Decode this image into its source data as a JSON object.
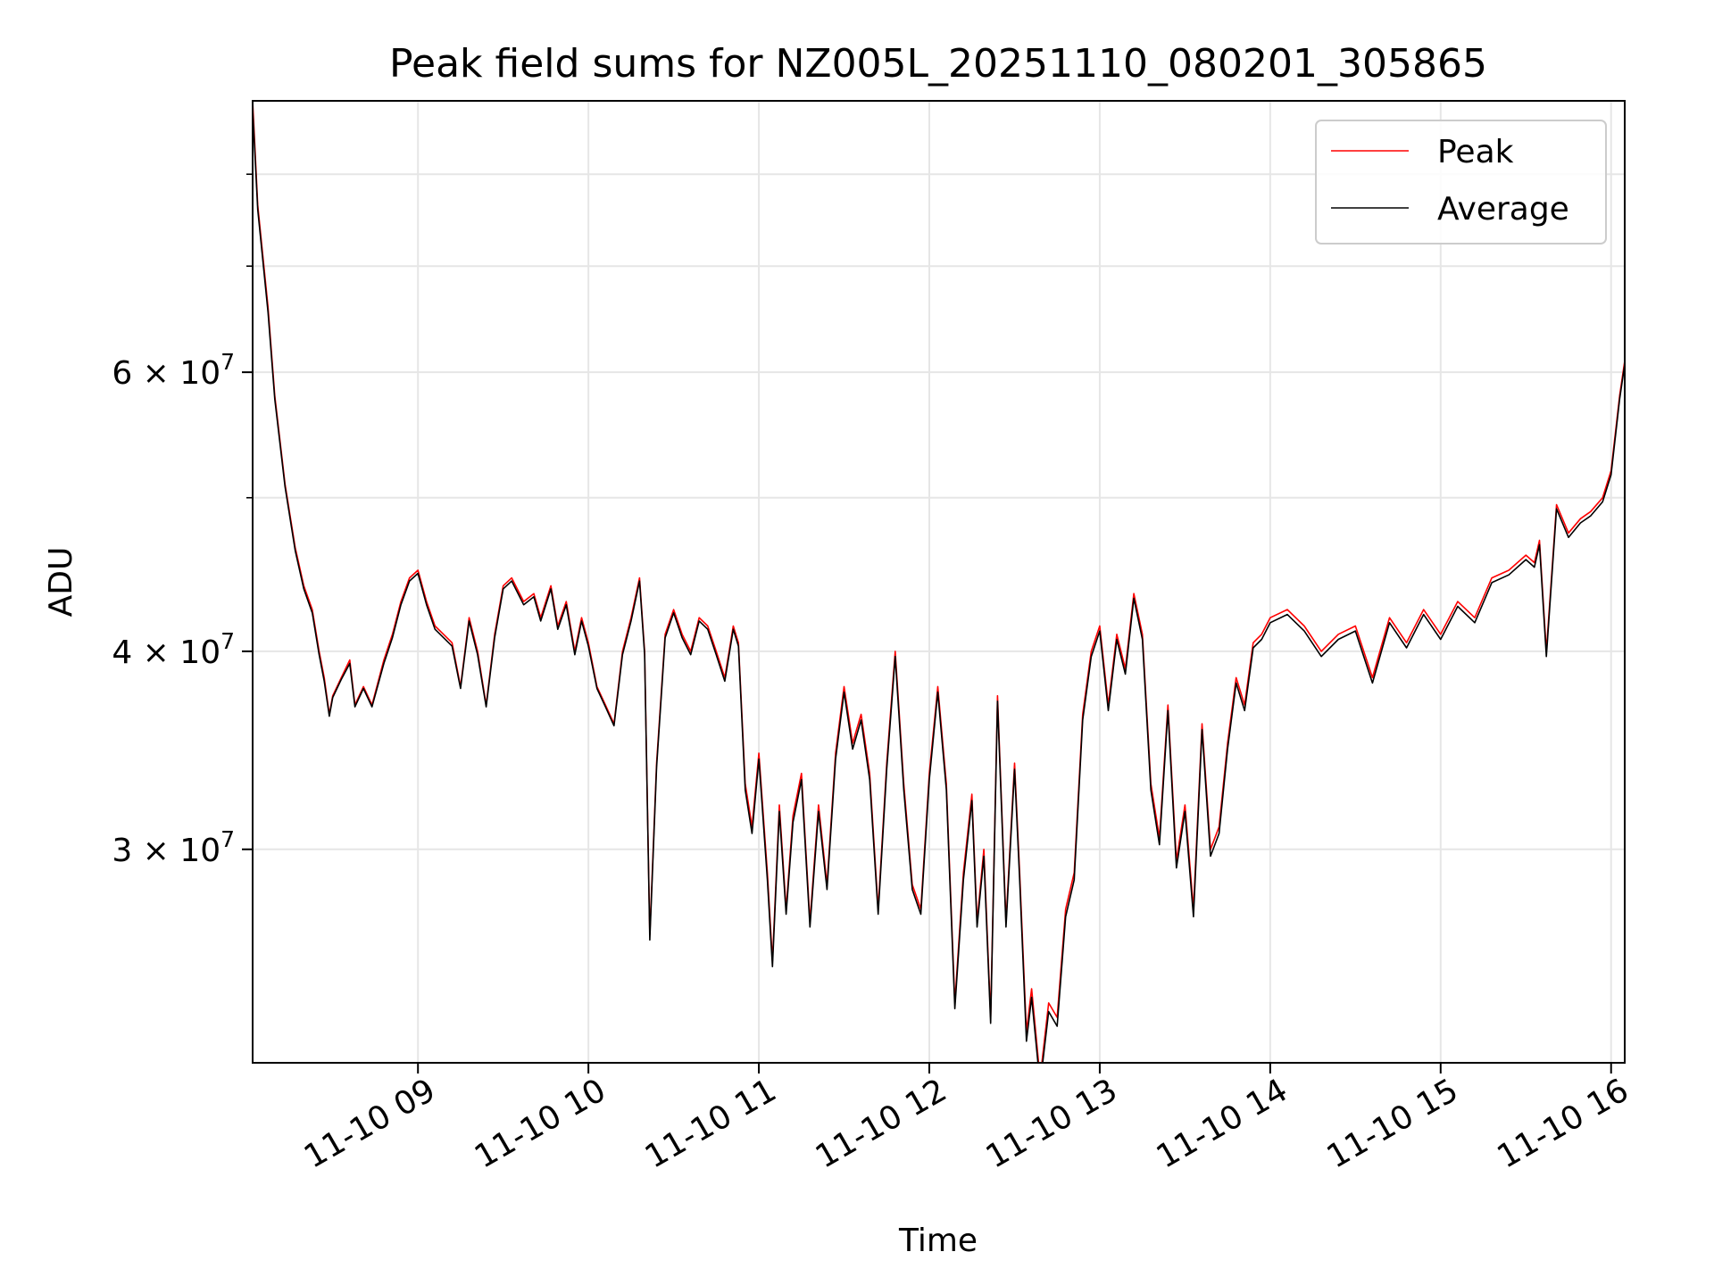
{
  "chart_data": {
    "type": "line",
    "title": "Peak field sums for NZ005L_20251110_080201_305865",
    "xlabel": "Time",
    "ylabel": "ADU",
    "y_scale": "log",
    "xlim_hours": [
      8.03,
      16.08
    ],
    "ylim": [
      22000000,
      89000000
    ],
    "grid": true,
    "legend_position": "upper right",
    "x_ticks": [
      {
        "hour": 9,
        "label": "11-10 09"
      },
      {
        "hour": 10,
        "label": "11-10 10"
      },
      {
        "hour": 11,
        "label": "11-10 11"
      },
      {
        "hour": 12,
        "label": "11-10 12"
      },
      {
        "hour": 13,
        "label": "11-10 13"
      },
      {
        "hour": 14,
        "label": "11-10 14"
      },
      {
        "hour": 15,
        "label": "11-10 15"
      },
      {
        "hour": 16,
        "label": "11-10 16"
      }
    ],
    "y_major_ticks": [
      {
        "value": 30000000,
        "mantissa": "3",
        "exponent": "7"
      },
      {
        "value": 40000000,
        "mantissa": "4",
        "exponent": "7"
      },
      {
        "value": 60000000,
        "mantissa": "6",
        "exponent": "7"
      }
    ],
    "y_minor_ticks": [
      50000000,
      70000000,
      80000000
    ],
    "times_hours": [
      8.03,
      8.06,
      8.09,
      8.12,
      8.16,
      8.22,
      8.28,
      8.33,
      8.38,
      8.42,
      8.45,
      8.48,
      8.5,
      8.55,
      8.6,
      8.63,
      8.68,
      8.73,
      8.8,
      8.85,
      8.9,
      8.95,
      9.0,
      9.05,
      9.1,
      9.15,
      9.2,
      9.25,
      9.3,
      9.35,
      9.4,
      9.45,
      9.5,
      9.55,
      9.62,
      9.68,
      9.72,
      9.78,
      9.82,
      9.87,
      9.92,
      9.96,
      10.0,
      10.05,
      10.1,
      10.15,
      10.2,
      10.25,
      10.3,
      10.33,
      10.36,
      10.4,
      10.45,
      10.5,
      10.55,
      10.6,
      10.65,
      10.7,
      10.75,
      10.8,
      10.85,
      10.88,
      10.92,
      10.96,
      11.0,
      11.05,
      11.08,
      11.12,
      11.16,
      11.2,
      11.25,
      11.3,
      11.35,
      11.4,
      11.45,
      11.5,
      11.55,
      11.6,
      11.65,
      11.7,
      11.75,
      11.8,
      11.85,
      11.9,
      11.95,
      12.0,
      12.05,
      12.1,
      12.15,
      12.2,
      12.25,
      12.28,
      12.32,
      12.36,
      12.4,
      12.45,
      12.5,
      12.53,
      12.57,
      12.6,
      12.65,
      12.7,
      12.75,
      12.8,
      12.85,
      12.9,
      12.95,
      13.0,
      13.05,
      13.1,
      13.15,
      13.2,
      13.25,
      13.3,
      13.35,
      13.4,
      13.45,
      13.5,
      13.55,
      13.6,
      13.65,
      13.7,
      13.75,
      13.8,
      13.85,
      13.9,
      13.95,
      14.0,
      14.1,
      14.2,
      14.3,
      14.4,
      14.5,
      14.6,
      14.7,
      14.8,
      14.9,
      15.0,
      15.1,
      15.2,
      15.3,
      15.4,
      15.5,
      15.55,
      15.58,
      15.62,
      15.68,
      15.75,
      15.82,
      15.88,
      15.95,
      16.0,
      16.05,
      16.08
    ],
    "series": [
      {
        "name": "Peak",
        "color": "#ff0000",
        "values": [
          89000000,
          76500000,
          71000000,
          66000000,
          58000000,
          51000000,
          46500000,
          44000000,
          42500000,
          40000000,
          38500000,
          36500000,
          37500000,
          38500000,
          39500000,
          37000000,
          38000000,
          37000000,
          39500000,
          41000000,
          43000000,
          44500000,
          45000000,
          43000000,
          41500000,
          41000000,
          40500000,
          38000000,
          42000000,
          40000000,
          37000000,
          41000000,
          44000000,
          44500000,
          43000000,
          43500000,
          42000000,
          44000000,
          41500000,
          43000000,
          40000000,
          42000000,
          40500000,
          38000000,
          37000000,
          36000000,
          40000000,
          42000000,
          44500000,
          40000000,
          26500000,
          34000000,
          41000000,
          42500000,
          41000000,
          40000000,
          42000000,
          41500000,
          40000000,
          38500000,
          41500000,
          40500000,
          33000000,
          31000000,
          34500000,
          29000000,
          25500000,
          32000000,
          27500000,
          31500000,
          33500000,
          27000000,
          32000000,
          28500000,
          34500000,
          38000000,
          35000000,
          36500000,
          33500000,
          27500000,
          34000000,
          40000000,
          33000000,
          28500000,
          27500000,
          33500000,
          38000000,
          33000000,
          24000000,
          29000000,
          32500000,
          27000000,
          30000000,
          23500000,
          37500000,
          27000000,
          34000000,
          29000000,
          23000000,
          24500000,
          21500000,
          24000000,
          23500000,
          27500000,
          29000000,
          36500000,
          40000000,
          41500000,
          37000000,
          41000000,
          39000000,
          43500000,
          41000000,
          33000000,
          30500000,
          37000000,
          29500000,
          32000000,
          27500000,
          36000000,
          30000000,
          31000000,
          35000000,
          38500000,
          37000000,
          40500000,
          41000000,
          42000000,
          42500000,
          41500000,
          40000000,
          41000000,
          41500000,
          38500000,
          42000000,
          40500000,
          42500000,
          41000000,
          43000000,
          42000000,
          44500000,
          45000000,
          46000000,
          45500000,
          47000000,
          40000000,
          49500000,
          47500000,
          48500000,
          49000000,
          50000000,
          52000000,
          58000000,
          61000000
        ]
      },
      {
        "name": "Average",
        "color": "#000000",
        "values": [
          88000000,
          76000000,
          70500000,
          65500000,
          57700000,
          50800000,
          46300000,
          43800000,
          42300000,
          39800000,
          38300000,
          36400000,
          37400000,
          38400000,
          39300000,
          36900000,
          37900000,
          36900000,
          39300000,
          40800000,
          42800000,
          44300000,
          44800000,
          42800000,
          41300000,
          40800000,
          40300000,
          37900000,
          41800000,
          39800000,
          36900000,
          40800000,
          43800000,
          44300000,
          42800000,
          43300000,
          41800000,
          43800000,
          41300000,
          42800000,
          39800000,
          41800000,
          40300000,
          37900000,
          36900000,
          35900000,
          39800000,
          41800000,
          44300000,
          39800000,
          26300000,
          33800000,
          40800000,
          42300000,
          40800000,
          39800000,
          41800000,
          41300000,
          39800000,
          38300000,
          41300000,
          40300000,
          32700000,
          30700000,
          34200000,
          28700000,
          25300000,
          31700000,
          27300000,
          31200000,
          33200000,
          26800000,
          31700000,
          28300000,
          34200000,
          37700000,
          34700000,
          36200000,
          33200000,
          27300000,
          33700000,
          39700000,
          32700000,
          28300000,
          27300000,
          33200000,
          37700000,
          32700000,
          23800000,
          28700000,
          32200000,
          26800000,
          29700000,
          23300000,
          37200000,
          26800000,
          33700000,
          28700000,
          22700000,
          24200000,
          21300000,
          23700000,
          23200000,
          27200000,
          28700000,
          36200000,
          39700000,
          41200000,
          36700000,
          40700000,
          38700000,
          43200000,
          40700000,
          32700000,
          30200000,
          36700000,
          29200000,
          31700000,
          27200000,
          35700000,
          29700000,
          30700000,
          34700000,
          38200000,
          36700000,
          40200000,
          40700000,
          41700000,
          42200000,
          41200000,
          39700000,
          40700000,
          41200000,
          38200000,
          41700000,
          40200000,
          42200000,
          40700000,
          42700000,
          41700000,
          44200000,
          44700000,
          45700000,
          45200000,
          46700000,
          39700000,
          49200000,
          47200000,
          48200000,
          48700000,
          49700000,
          51700000,
          57700000,
          60700000
        ]
      }
    ]
  }
}
